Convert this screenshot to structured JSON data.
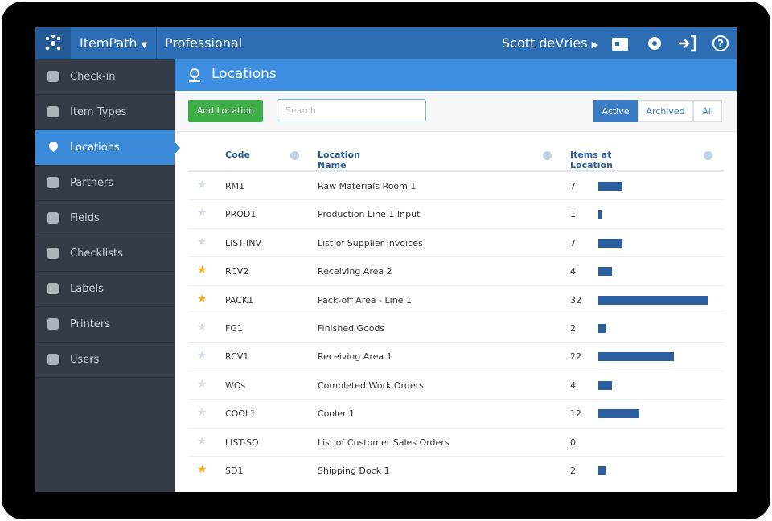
{
  "header": {
    "app": "ItemPath",
    "edition": "Professional",
    "user": "Scott deVries"
  },
  "sidebar": {
    "items": [
      "Check-in",
      "Item Types",
      "Locations",
      "Partners",
      "Fields",
      "Checklists",
      "Labels",
      "Printers",
      "Users"
    ],
    "active": 2
  },
  "page": {
    "title": "Locations",
    "add_button": "Add Location",
    "search_placeholder": "Search",
    "filters": [
      "Active",
      "Archived",
      "All"
    ],
    "active_filter": 0
  },
  "table": {
    "columns": [
      "Code",
      "Location Name",
      "Items at Location"
    ],
    "rows": [
      {
        "code": "RM1",
        "name": "Raw Materials Room 1",
        "items": 7,
        "starred": false
      },
      {
        "code": "PROD1",
        "name": "Production Line 1 Input",
        "items": 1,
        "starred": false
      },
      {
        "code": "LIST-INV",
        "name": "List of Supplier Invoices",
        "items": 7,
        "starred": false
      },
      {
        "code": "RCV2",
        "name": "Receiving Area 2",
        "items": 4,
        "starred": true
      },
      {
        "code": "PACK1",
        "name": "Pack-off Area - Line 1",
        "items": 32,
        "starred": true
      },
      {
        "code": "FG1",
        "name": "Finished Goods",
        "items": 2,
        "starred": false
      },
      {
        "code": "RCV1",
        "name": "Receiving Area 1",
        "items": 22,
        "starred": false
      },
      {
        "code": "WOs",
        "name": "Completed Work Orders",
        "items": 4,
        "starred": false
      },
      {
        "code": "COOL1",
        "name": "Cooler 1",
        "items": 12,
        "starred": false
      },
      {
        "code": "LIST-SO",
        "name": "List of Customer Sales Orders",
        "items": 0,
        "starred": false
      },
      {
        "code": "SD1",
        "name": "Shipping Dock 1",
        "items": 2,
        "starred": true
      }
    ]
  }
}
